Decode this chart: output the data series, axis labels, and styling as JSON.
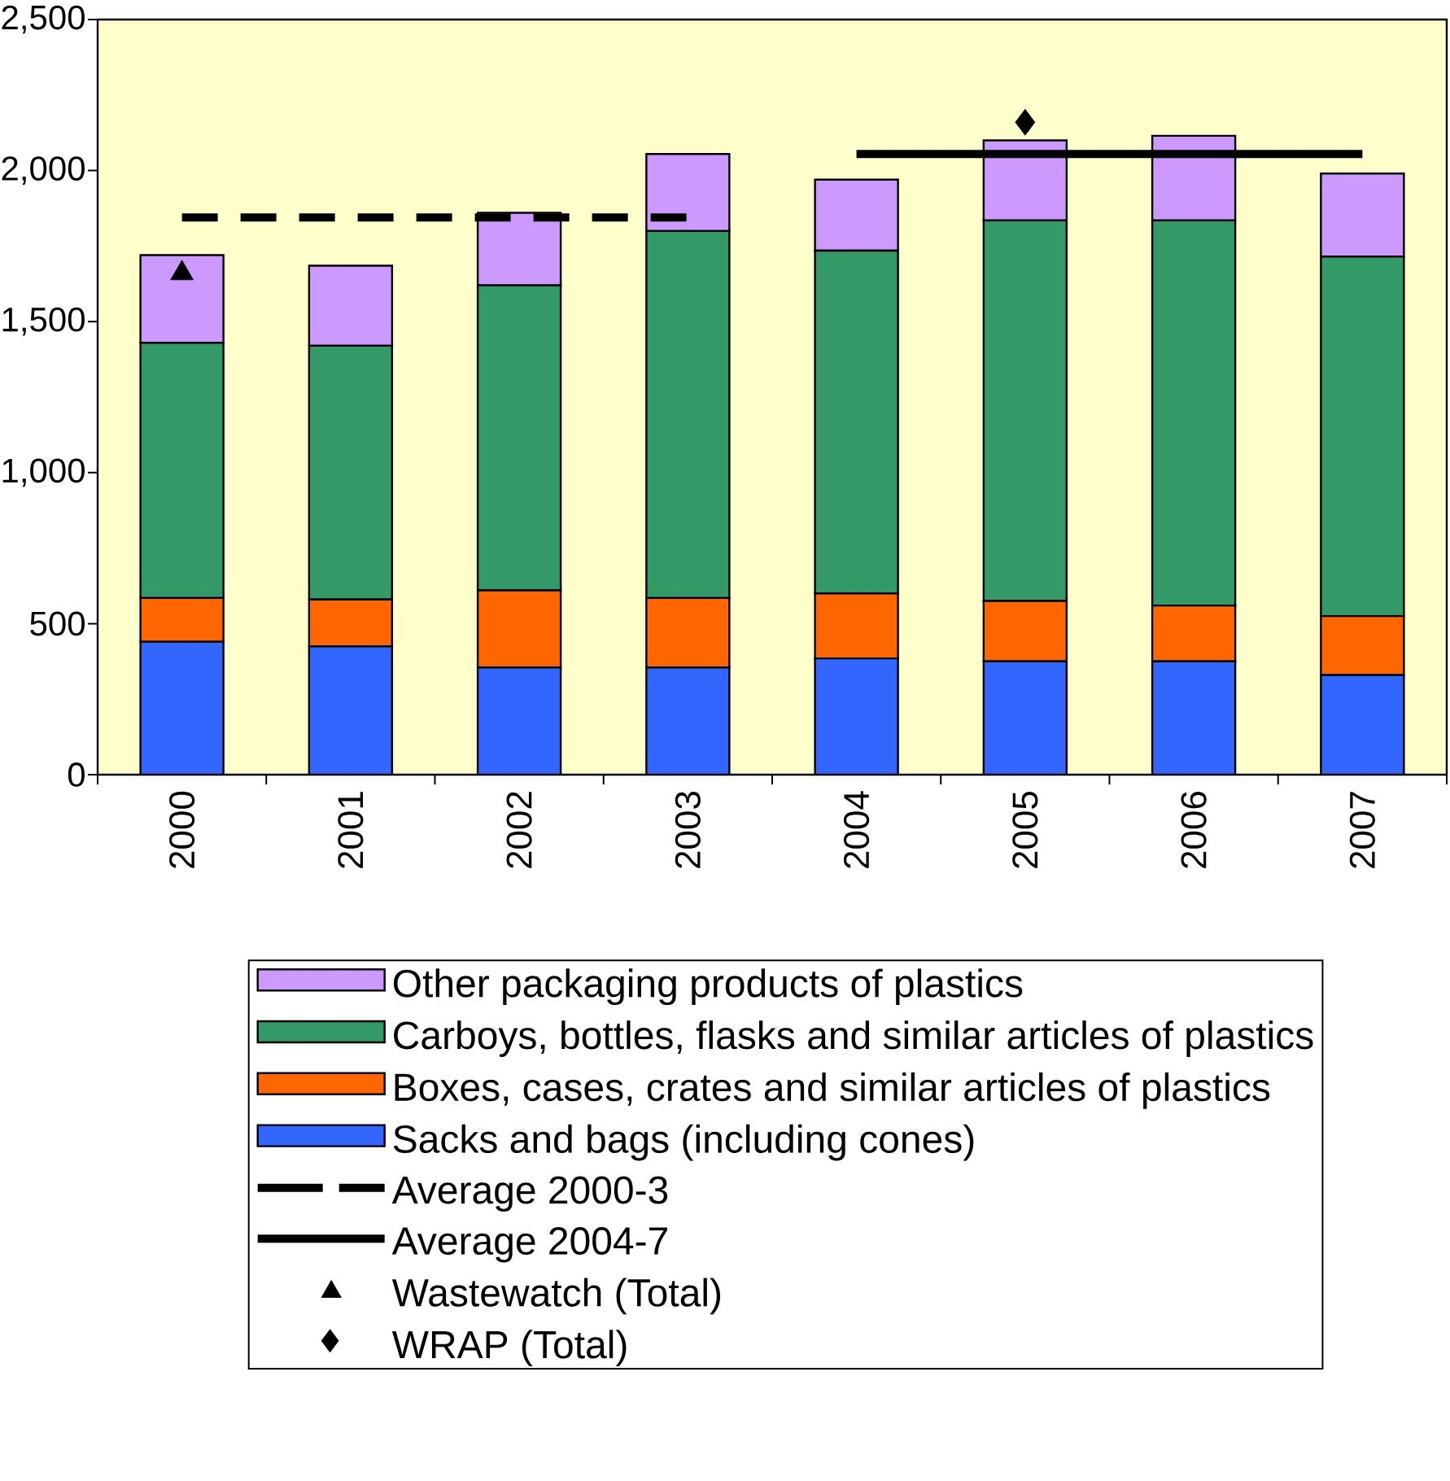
{
  "chart_data": {
    "type": "bar",
    "stacked": true,
    "legend": "bottom",
    "categories": [
      "2000",
      "2001",
      "2002",
      "2003",
      "2004",
      "2005",
      "2006",
      "2007"
    ],
    "ylim": [
      0,
      2500
    ],
    "yticks": [
      0,
      500,
      {
        "value": 1000,
        "label": "1,000"
      },
      {
        "value": 1500,
        "label": "1,500"
      },
      {
        "value": 2000,
        "label": "2,000"
      },
      {
        "value": 2500,
        "label": "2,500"
      }
    ],
    "series": [
      {
        "name": "Sacks and bags (including cones)",
        "color": "#3366ff",
        "values": [
          440,
          425,
          355,
          355,
          385,
          375,
          375,
          330
        ]
      },
      {
        "name": "Boxes, cases, crates and similar articles of plastics",
        "color": "#ff6600",
        "values": [
          145,
          155,
          255,
          230,
          215,
          200,
          185,
          195
        ]
      },
      {
        "name": "Carboys, bottles, flasks and similar articles of plastics",
        "color": "#339966",
        "values": [
          845,
          840,
          1010,
          1215,
          1135,
          1260,
          1275,
          1190
        ]
      },
      {
        "name": "Other packaging products of plastics",
        "color": "#cc99ff",
        "values": [
          290,
          265,
          240,
          255,
          235,
          265,
          280,
          275
        ]
      },
      {
        "name": "Average 2000-3",
        "type": "line",
        "color": "#000000",
        "line_style": "dashed",
        "marker": "none",
        "values": [
          1845,
          1845,
          1845,
          1845,
          null,
          null,
          null,
          null
        ]
      },
      {
        "name": "Average 2004-7",
        "type": "line",
        "color": "#000000",
        "line_style": "solid",
        "marker": "none",
        "values": [
          null,
          null,
          null,
          null,
          2055,
          2055,
          2055,
          2055
        ]
      },
      {
        "name": "Wastewatch (Total)",
        "type": "scatter",
        "color": "#000000",
        "marker": "triangle",
        "values": [
          1660,
          null,
          null,
          null,
          null,
          null,
          null,
          null
        ]
      },
      {
        "name": "WRAP (Total)",
        "type": "scatter",
        "color": "#000000",
        "marker": "diamond",
        "values": [
          null,
          null,
          null,
          null,
          null,
          2160,
          null,
          null
        ]
      }
    ]
  }
}
